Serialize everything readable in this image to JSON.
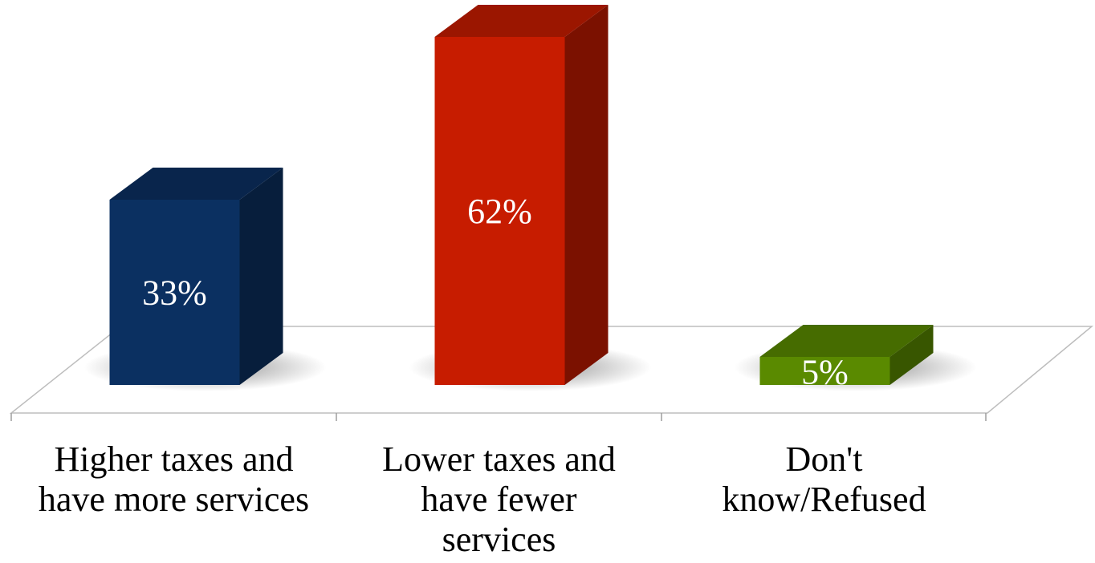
{
  "chart_data": {
    "type": "bar",
    "style": "3d-column",
    "categories": [
      [
        "Higher taxes and",
        "have more services"
      ],
      [
        "Lower taxes and",
        "have fewer",
        "services"
      ],
      [
        "Don't",
        "know/Refused"
      ]
    ],
    "values": [
      33,
      62,
      5
    ],
    "value_labels": [
      "33%",
      "62%",
      "5%"
    ],
    "colors": [
      "#0b3061",
      "#c71c00",
      "#5a8a00"
    ],
    "ylim": [
      0,
      70
    ],
    "grid": false,
    "legend": "none",
    "title": "",
    "xlabel": "",
    "ylabel": ""
  }
}
